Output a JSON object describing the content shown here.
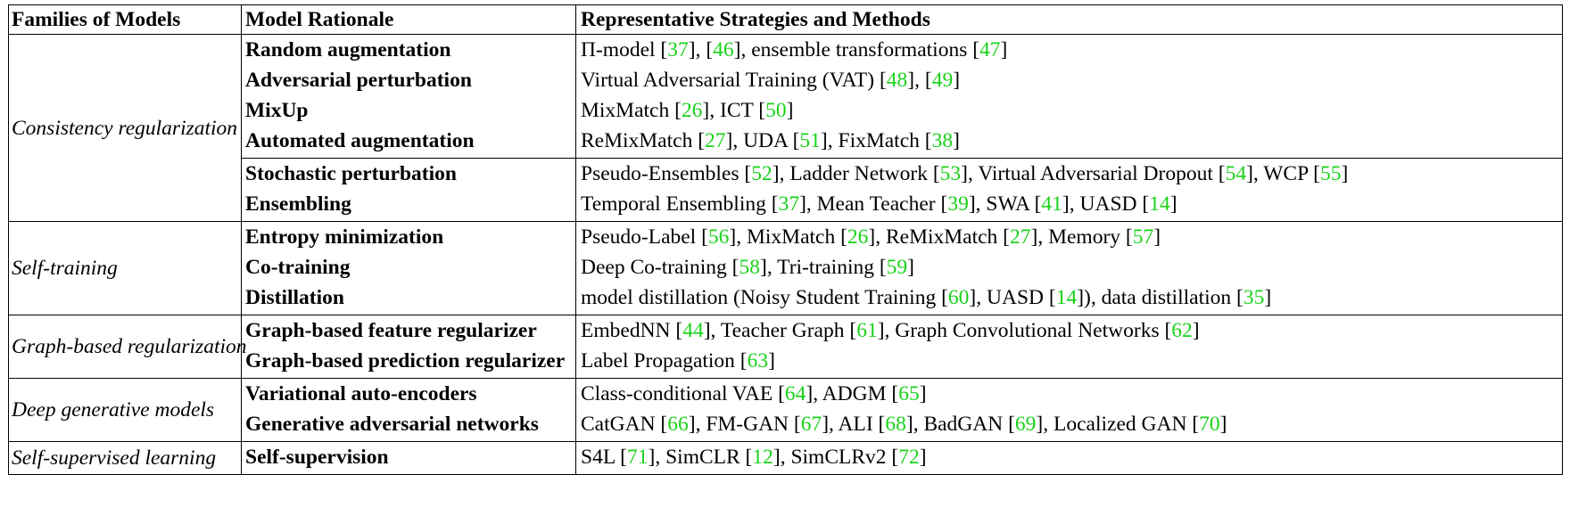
{
  "headers": {
    "families": "Families of Models",
    "rationale": "Model Rationale",
    "methods": "Representative Strategies and Methods"
  },
  "ref_color": "#19d219",
  "groups": [
    {
      "family": "Consistency regularization",
      "blocks": [
        {
          "rows": [
            {
              "rationale": "Random augmentation",
              "methods": [
                [
                  "Π-model [",
                  false
                ],
                [
                  "37",
                  true
                ],
                [
                  "], [",
                  false
                ],
                [
                  "46",
                  true
                ],
                [
                  "], ensemble transformations [",
                  false
                ],
                [
                  "47",
                  true
                ],
                [
                  "]",
                  false
                ]
              ]
            },
            {
              "rationale": "Adversarial perturbation",
              "methods": [
                [
                  "Virtual Adversarial Training (VAT) [",
                  false
                ],
                [
                  "48",
                  true
                ],
                [
                  "], [",
                  false
                ],
                [
                  "49",
                  true
                ],
                [
                  "]",
                  false
                ]
              ]
            },
            {
              "rationale": "MixUp",
              "methods": [
                [
                  "MixMatch [",
                  false
                ],
                [
                  "26",
                  true
                ],
                [
                  "], ICT [",
                  false
                ],
                [
                  "50",
                  true
                ],
                [
                  "]",
                  false
                ]
              ]
            },
            {
              "rationale": "Automated augmentation",
              "methods": [
                [
                  "ReMixMatch [",
                  false
                ],
                [
                  "27",
                  true
                ],
                [
                  "], UDA [",
                  false
                ],
                [
                  "51",
                  true
                ],
                [
                  "], FixMatch [",
                  false
                ],
                [
                  "38",
                  true
                ],
                [
                  "]",
                  false
                ]
              ]
            }
          ]
        },
        {
          "rows": [
            {
              "rationale": "Stochastic perturbation",
              "methods": [
                [
                  "Pseudo-Ensembles [",
                  false
                ],
                [
                  "52",
                  true
                ],
                [
                  "], Ladder Network [",
                  false
                ],
                [
                  "53",
                  true
                ],
                [
                  "], Virtual Adversarial Dropout [",
                  false
                ],
                [
                  "54",
                  true
                ],
                [
                  "], WCP [",
                  false
                ],
                [
                  "55",
                  true
                ],
                [
                  "]",
                  false
                ]
              ]
            },
            {
              "rationale": "Ensembling",
              "methods": [
                [
                  "Temporal Ensembling [",
                  false
                ],
                [
                  "37",
                  true
                ],
                [
                  "], Mean Teacher [",
                  false
                ],
                [
                  "39",
                  true
                ],
                [
                  "], SWA [",
                  false
                ],
                [
                  "41",
                  true
                ],
                [
                  "], UASD [",
                  false
                ],
                [
                  "14",
                  true
                ],
                [
                  "]",
                  false
                ]
              ]
            }
          ]
        }
      ]
    },
    {
      "family": "Self-training",
      "blocks": [
        {
          "rows": [
            {
              "rationale": "Entropy minimization",
              "methods": [
                [
                  "Pseudo-Label [",
                  false
                ],
                [
                  "56",
                  true
                ],
                [
                  "], MixMatch [",
                  false
                ],
                [
                  "26",
                  true
                ],
                [
                  "], ReMixMatch [",
                  false
                ],
                [
                  "27",
                  true
                ],
                [
                  "], Memory [",
                  false
                ],
                [
                  "57",
                  true
                ],
                [
                  "]",
                  false
                ]
              ]
            },
            {
              "rationale": "Co-training",
              "methods": [
                [
                  "Deep Co-training [",
                  false
                ],
                [
                  "58",
                  true
                ],
                [
                  "], Tri-training [",
                  false
                ],
                [
                  "59",
                  true
                ],
                [
                  "]",
                  false
                ]
              ]
            },
            {
              "rationale": "Distillation",
              "methods": [
                [
                  "model distillation (Noisy Student Training [",
                  false
                ],
                [
                  "60",
                  true
                ],
                [
                  "], UASD [",
                  false
                ],
                [
                  "14",
                  true
                ],
                [
                  "]), data distillation [",
                  false
                ],
                [
                  "35",
                  true
                ],
                [
                  "]",
                  false
                ]
              ]
            }
          ]
        }
      ]
    },
    {
      "family": "Graph-based regularization",
      "blocks": [
        {
          "rows": [
            {
              "rationale": "Graph-based feature regularizer",
              "methods": [
                [
                  "EmbedNN [",
                  false
                ],
                [
                  "44",
                  true
                ],
                [
                  "], Teacher Graph [",
                  false
                ],
                [
                  "61",
                  true
                ],
                [
                  "], Graph Convolutional Networks [",
                  false
                ],
                [
                  "62",
                  true
                ],
                [
                  "]",
                  false
                ]
              ]
            },
            {
              "rationale": "Graph-based prediction regularizer",
              "methods": [
                [
                  "Label Propagation [",
                  false
                ],
                [
                  "63",
                  true
                ],
                [
                  "]",
                  false
                ]
              ]
            }
          ]
        }
      ]
    },
    {
      "family": "Deep generative models",
      "blocks": [
        {
          "rows": [
            {
              "rationale": "Variational auto-encoders",
              "methods": [
                [
                  "Class-conditional VAE [",
                  false
                ],
                [
                  "64",
                  true
                ],
                [
                  "], ADGM [",
                  false
                ],
                [
                  "65",
                  true
                ],
                [
                  "]",
                  false
                ]
              ]
            },
            {
              "rationale": "Generative adversarial networks",
              "methods": [
                [
                  "CatGAN [",
                  false
                ],
                [
                  "66",
                  true
                ],
                [
                  "], FM-GAN [",
                  false
                ],
                [
                  "67",
                  true
                ],
                [
                  "], ALI [",
                  false
                ],
                [
                  "68",
                  true
                ],
                [
                  "], BadGAN [",
                  false
                ],
                [
                  "69",
                  true
                ],
                [
                  "], Localized GAN [",
                  false
                ],
                [
                  "70",
                  true
                ],
                [
                  "]",
                  false
                ]
              ]
            }
          ]
        }
      ]
    },
    {
      "family": "Self-supervised learning",
      "blocks": [
        {
          "rows": [
            {
              "rationale": "Self-supervision",
              "methods": [
                [
                  "S4L [",
                  false
                ],
                [
                  "71",
                  true
                ],
                [
                  "], SimCLR [",
                  false
                ],
                [
                  "12",
                  true
                ],
                [
                  "], SimCLRv2 [",
                  false
                ],
                [
                  "72",
                  true
                ],
                [
                  "]",
                  false
                ]
              ]
            }
          ]
        }
      ]
    }
  ]
}
